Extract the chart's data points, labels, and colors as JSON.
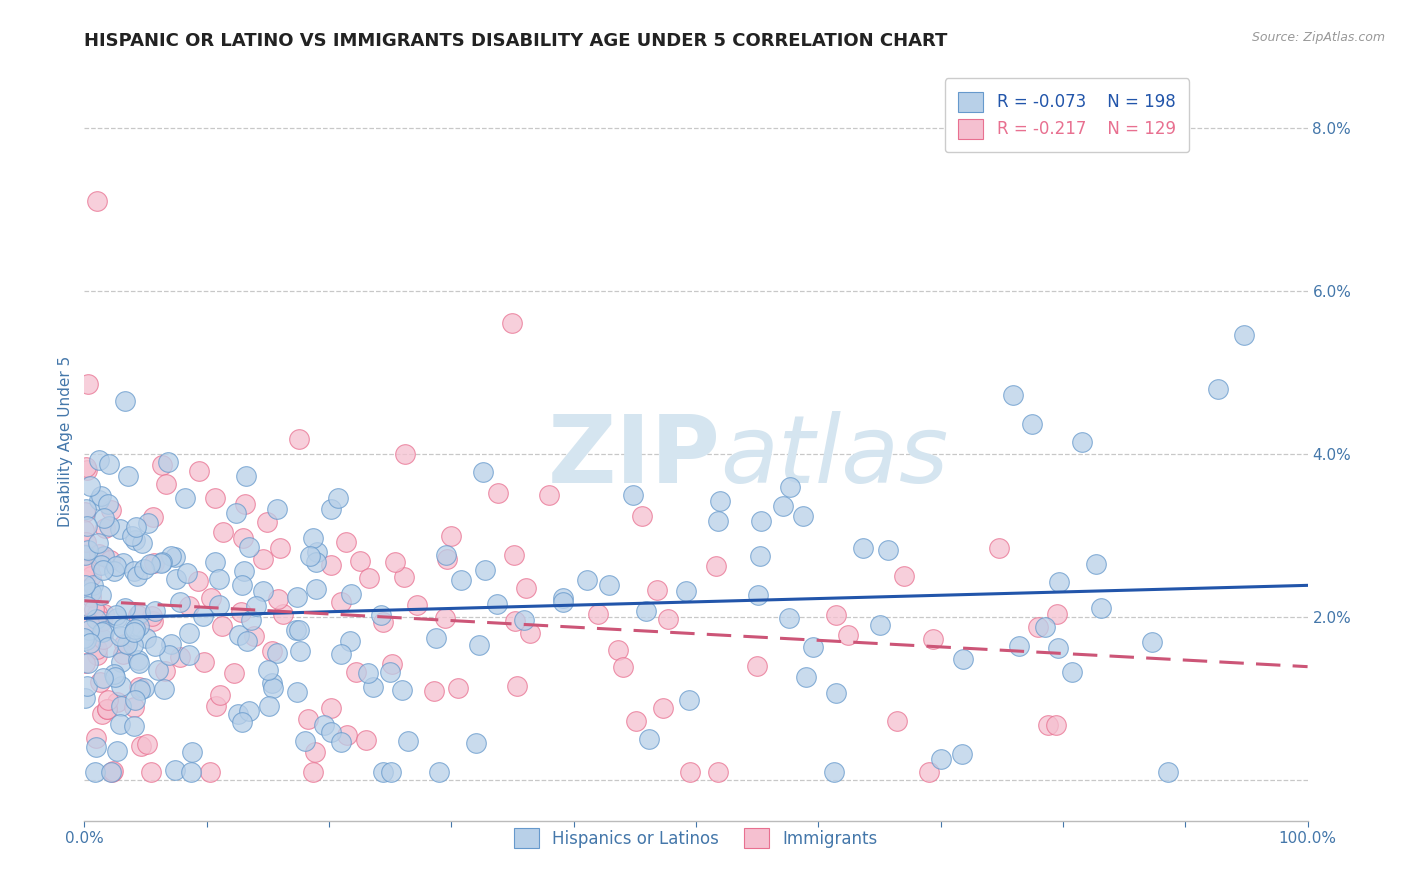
{
  "title": "HISPANIC OR LATINO VS IMMIGRANTS DISABILITY AGE UNDER 5 CORRELATION CHART",
  "source": "Source: ZipAtlas.com",
  "ylabel": "Disability Age Under 5",
  "xlim": [
    0.0,
    1.0
  ],
  "ylim": [
    -0.005,
    0.088
  ],
  "yticks": [
    0.0,
    0.02,
    0.04,
    0.06,
    0.08
  ],
  "ytick_labels": [
    "",
    "2.0%",
    "4.0%",
    "6.0%",
    "8.0%"
  ],
  "xtick_left_label": "0.0%",
  "xtick_right_label": "100.0%",
  "blue_color": "#b8d0e8",
  "blue_edge_color": "#6699cc",
  "pink_color": "#f5c0d0",
  "pink_edge_color": "#e87090",
  "blue_line_color": "#2255aa",
  "pink_line_color": "#cc5577",
  "legend_blue_color": "#b8d0e8",
  "legend_pink_color": "#f5c0d0",
  "R_blue": -0.073,
  "N_blue": 198,
  "R_pink": -0.217,
  "N_pink": 129,
  "title_color": "#222222",
  "axis_label_color": "#4477aa",
  "tick_color": "#4477aa",
  "grid_color": "#bbbbbb",
  "background_color": "#ffffff",
  "watermark_zip": "ZIP",
  "watermark_atlas": "atlas",
  "watermark_color": "#d5e5f0",
  "legend_label_blue": "Hispanics or Latinos",
  "legend_label_pink": "Immigrants",
  "title_fontsize": 13,
  "axis_label_fontsize": 11,
  "tick_fontsize": 11,
  "legend_fontsize": 12,
  "scatter_size": 200,
  "blue_seed": 7,
  "pink_seed": 13
}
